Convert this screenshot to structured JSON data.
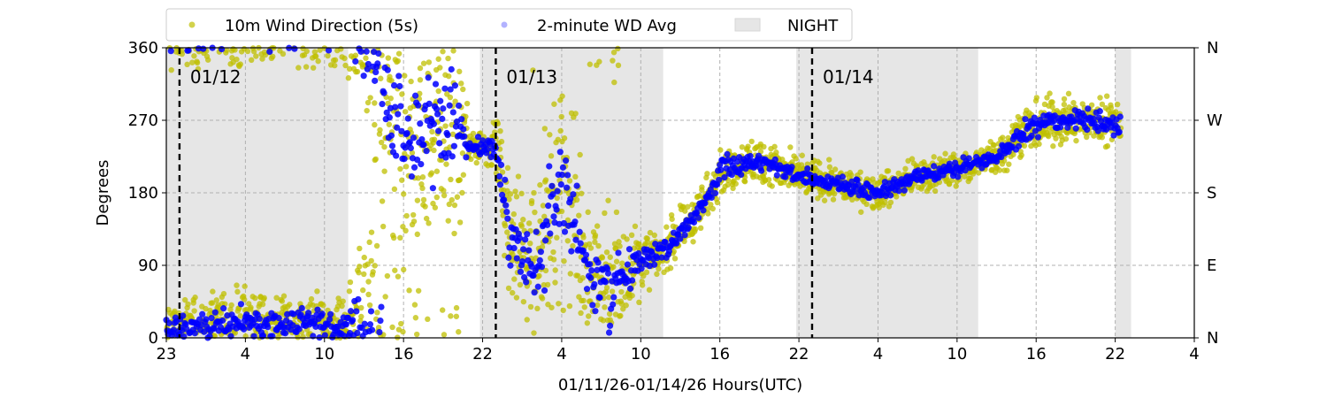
{
  "chart_data": {
    "type": "scatter",
    "xlabel": "01/11/26-01/14/26  Hours(UTC)",
    "ylabel": "Degrees",
    "xlim_hours": [
      0,
      78
    ],
    "ylim": [
      0,
      360
    ],
    "x_tick_labels": [
      "23",
      "4",
      "10",
      "16",
      "22",
      "4",
      "10",
      "16",
      "22",
      "4",
      "10",
      "16",
      "22",
      "4"
    ],
    "y_ticks": [
      0,
      90,
      180,
      270,
      360
    ],
    "y_tick_labels": [
      "0",
      "90",
      "180",
      "270",
      "360"
    ],
    "right_tick_labels": [
      "N",
      "E",
      "S",
      "W",
      "N"
    ],
    "grid": true,
    "legend_position": "top-center",
    "legend": [
      {
        "label": "10m Wind Direction (5s)",
        "color": "#bfbf00"
      },
      {
        "label": "2-minute WD Avg",
        "color": "#0000ff"
      },
      {
        "label": "NIGHT",
        "color": "#e6e6e6"
      }
    ],
    "night_periods_hours": [
      [
        0,
        13.8
      ],
      [
        23.8,
        37.7
      ],
      [
        47.8,
        61.6
      ],
      [
        72,
        73.2
      ]
    ],
    "day_markers": [
      {
        "hour": 1,
        "label": "01/12"
      },
      {
        "hour": 25,
        "label": "01/13"
      },
      {
        "hour": 49,
        "label": "01/14"
      }
    ],
    "series_profile": {
      "columns": [
        "hour",
        "mean_degrees",
        "spread_degrees"
      ],
      "points": [
        [
          0,
          10,
          25
        ],
        [
          3,
          15,
          25
        ],
        [
          6,
          20,
          30
        ],
        [
          8,
          15,
          25
        ],
        [
          11,
          20,
          30
        ],
        [
          13.5,
          10,
          25
        ],
        [
          14.5,
          20,
          60
        ],
        [
          16,
          330,
          120
        ],
        [
          18,
          250,
          120
        ],
        [
          20,
          260,
          110
        ],
        [
          22,
          270,
          90
        ],
        [
          23,
          235,
          15
        ],
        [
          25,
          240,
          20
        ],
        [
          26,
          130,
          60
        ],
        [
          28,
          90,
          70
        ],
        [
          30,
          200,
          120
        ],
        [
          32,
          80,
          60
        ],
        [
          34,
          60,
          70
        ],
        [
          35.5,
          95,
          40
        ],
        [
          37,
          100,
          20
        ],
        [
          39,
          130,
          20
        ],
        [
          41,
          170,
          20
        ],
        [
          42,
          210,
          20
        ],
        [
          45,
          220,
          20
        ],
        [
          48,
          200,
          15
        ],
        [
          51,
          190,
          15
        ],
        [
          54,
          180,
          15
        ],
        [
          57,
          200,
          15
        ],
        [
          60,
          210,
          15
        ],
        [
          63,
          225,
          15
        ],
        [
          65,
          255,
          20
        ],
        [
          67,
          270,
          20
        ],
        [
          70,
          270,
          20
        ],
        [
          72.3,
          265,
          25
        ]
      ],
      "end_hour": 72.4
    }
  }
}
